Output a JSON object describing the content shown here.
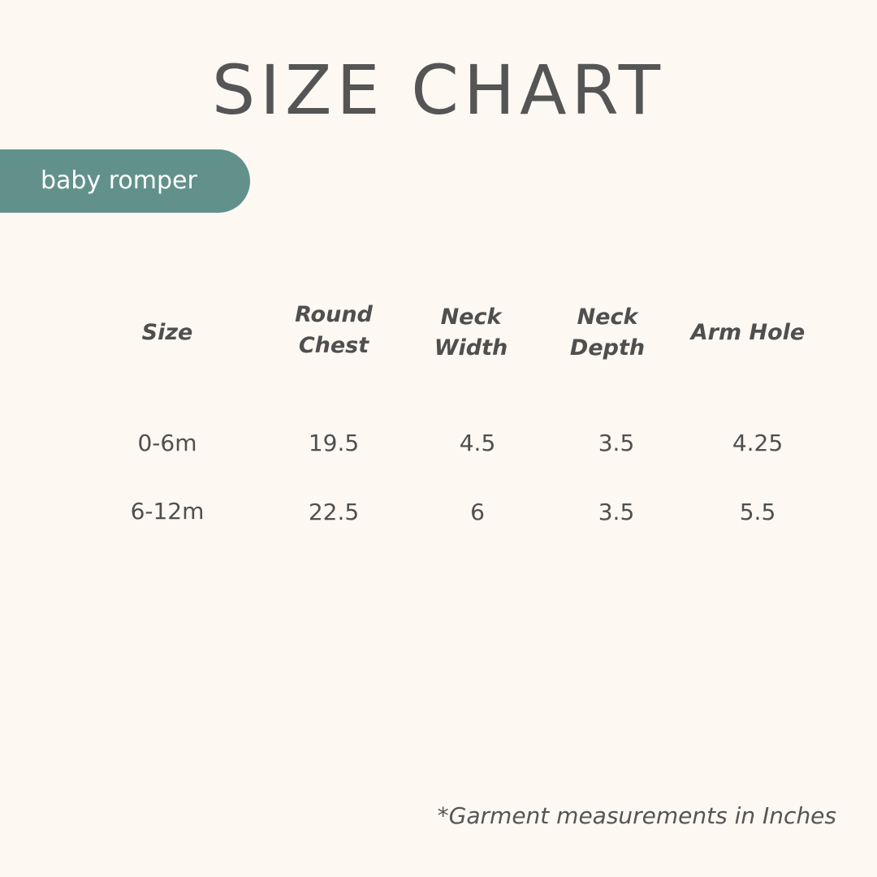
{
  "title": "SIZE CHART",
  "tag": "baby romper",
  "headers": [
    "Size",
    "Round Chest",
    "Neck Width",
    "Neck Depth",
    "Arm Hole"
  ],
  "rows": [
    [
      "0-6m",
      "19.5",
      "4.5",
      "3.5",
      "4.25"
    ],
    [
      "6-12m",
      "22.5",
      "6",
      "3.5",
      "5.5"
    ]
  ],
  "note": "*Garment measurements in Inches",
  "colors": {
    "background": "#fdf8f2",
    "tag": "#62918b",
    "text": "#4f4f4f"
  }
}
